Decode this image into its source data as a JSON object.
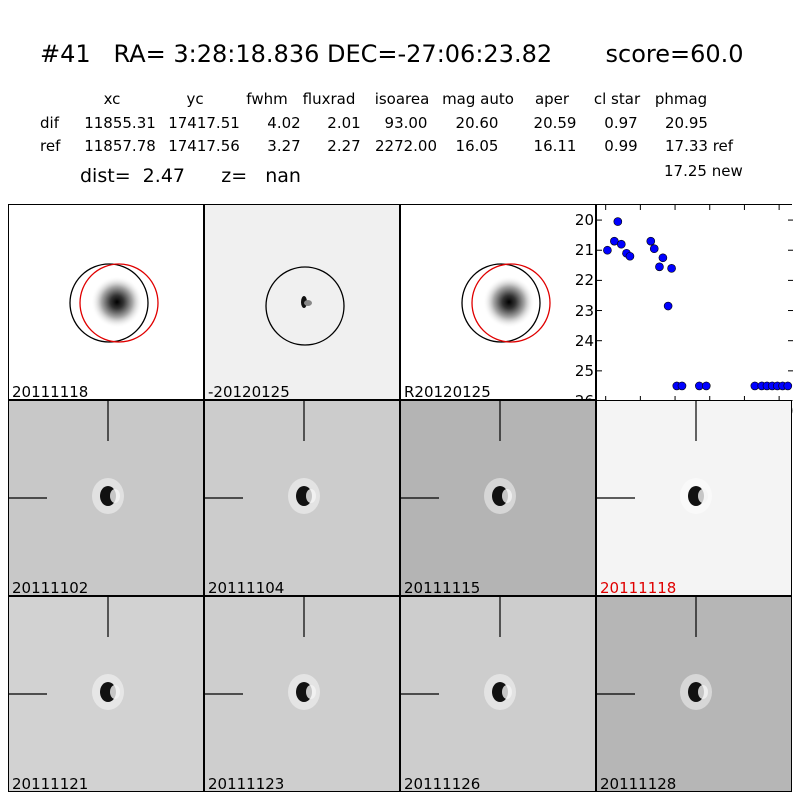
{
  "header": {
    "title": "#41   RA= 3:28:18.836 DEC=-27:06:23.82       score=60.0",
    "col_headers": [
      "xc",
      "yc",
      "fwhm",
      "fluxrad",
      "isoarea",
      "mag auto",
      "aper",
      "cl star",
      "phmag"
    ],
    "rows": [
      {
        "label": "dif",
        "values": [
          "11855.31",
          "17417.51",
          "4.02",
          "2.01",
          "93.00",
          "20.60",
          "20.59",
          "0.97",
          "20.95"
        ]
      },
      {
        "label": "ref",
        "values": [
          "11857.78",
          "17417.56",
          "3.27",
          "2.27",
          "2272.00",
          "16.05",
          "16.11",
          "0.99",
          "17.33 ref"
        ]
      }
    ],
    "phmag_new": "17.25 new",
    "dist_line": "dist=  2.47      z=   nan"
  },
  "panels": {
    "top": [
      {
        "label": "20111118",
        "type": "ref_circles"
      },
      {
        "label": "-20120125",
        "type": "diff_circle"
      },
      {
        "label": "R20120125",
        "type": "ref_circles"
      }
    ],
    "epochs": [
      {
        "label": "20111102",
        "bg": "#c8c8c8",
        "highlight": false
      },
      {
        "label": "20111104",
        "bg": "#cccccc",
        "highlight": false
      },
      {
        "label": "20111115",
        "bg": "#b4b4b4",
        "highlight": false
      },
      {
        "label": "20111118",
        "bg": "#f4f4f4",
        "highlight": true
      },
      {
        "label": "20111121",
        "bg": "#d2d2d2",
        "highlight": false
      },
      {
        "label": "20111123",
        "bg": "#cecece",
        "highlight": false
      },
      {
        "label": "20111126",
        "bg": "#cdcdcd",
        "highlight": false
      },
      {
        "label": "20111128",
        "bg": "#b6b6b6",
        "highlight": false
      }
    ],
    "highlight_color": "#e00000"
  },
  "chart_data": {
    "type": "scatter",
    "xlim": [
      -5,
      108
    ],
    "ylim": [
      26,
      19.5
    ],
    "y_inverted": true,
    "xticks": [
      0,
      20,
      40,
      60,
      80,
      100
    ],
    "yticks": [
      20,
      21,
      22,
      23,
      24,
      25,
      26
    ],
    "marker_color": "#0000ff",
    "points": [
      [
        1,
        21.0
      ],
      [
        5,
        20.7
      ],
      [
        7,
        20.05
      ],
      [
        9,
        20.8
      ],
      [
        12,
        21.1
      ],
      [
        14,
        21.2
      ],
      [
        26,
        20.7
      ],
      [
        28,
        20.95
      ],
      [
        31,
        21.55
      ],
      [
        33,
        21.25
      ],
      [
        36,
        22.85
      ],
      [
        38,
        21.6
      ],
      [
        41,
        25.5
      ],
      [
        44,
        25.5
      ],
      [
        54,
        25.5
      ],
      [
        58,
        25.5
      ],
      [
        86,
        25.5
      ],
      [
        90,
        25.5
      ],
      [
        93,
        25.5
      ],
      [
        96,
        25.5
      ],
      [
        99,
        25.5
      ],
      [
        102,
        25.5
      ],
      [
        105,
        25.5
      ]
    ]
  }
}
